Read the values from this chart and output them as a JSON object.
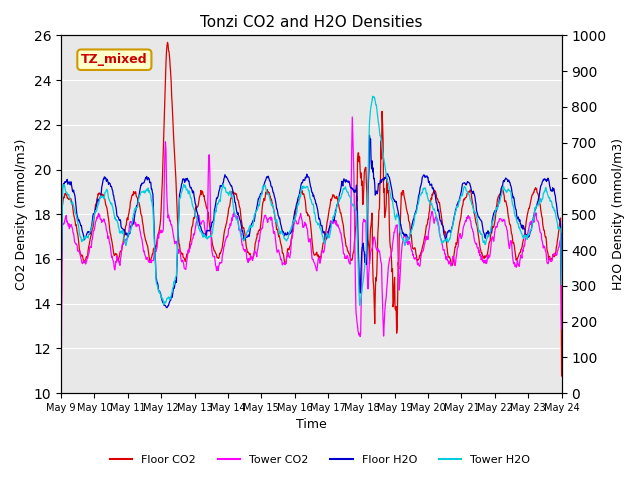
{
  "title": "Tonzi CO2 and H2O Densities",
  "xlabel": "Time",
  "ylabel_left": "CO2 Density (mmol/m3)",
  "ylabel_right": "H2O Density (mmol/m3)",
  "ylim_left": [
    10,
    26
  ],
  "ylim_right": [
    0,
    1000
  ],
  "yticks_left": [
    10,
    12,
    14,
    16,
    18,
    20,
    22,
    24,
    26
  ],
  "yticks_right": [
    0,
    100,
    200,
    300,
    400,
    500,
    600,
    700,
    800,
    900,
    1000
  ],
  "x_labels": [
    "May 9",
    "May 10",
    "May 11",
    "May 12",
    "May 13",
    "May 14",
    "May 15",
    "May 16",
    "May 17",
    "May 18",
    "May 19",
    "May 20",
    "May 21",
    "May 22",
    "May 23",
    "May 24"
  ],
  "annotation_text": "TZ_mixed",
  "annotation_color": "#cc0000",
  "annotation_bg": "#ffffcc",
  "annotation_border": "#cc9900",
  "colors": {
    "floor_co2": "#dd0000",
    "tower_co2": "#ff00ff",
    "floor_h2o": "#0000cc",
    "tower_h2o": "#00ccdd"
  },
  "legend_labels": [
    "Floor CO2",
    "Tower CO2",
    "Floor H2O",
    "Tower H2O"
  ],
  "background_color": "#e8e8e8",
  "grid_color": "#ffffff",
  "n_points": 960
}
